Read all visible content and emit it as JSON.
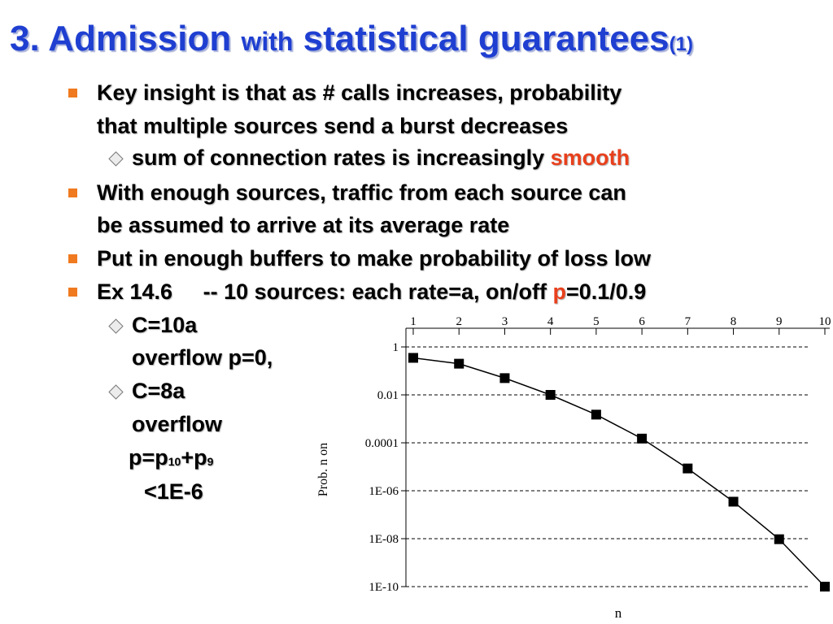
{
  "slide": {
    "title_part1": "3. Admission ",
    "title_part2": "with",
    "title_part3": " statistical guarantees",
    "title_part4": "(1)",
    "bullet1_line1": "Key insight is that as # calls increases, probability",
    "bullet1_line2": "that multiple sources send a burst decreases",
    "sub1_text": "sum of connection rates is increasingly ",
    "sub1_accent": "smooth",
    "bullet2_line1": "With enough sources, traffic from each source can",
    "bullet2_line2": "be assumed to arrive at its average rate",
    "bullet3": "Put in enough buffers to make probability of loss low",
    "bullet4_pre": "Ex 14.6     -- 10 sources: each rate=a, on/off ",
    "bullet4_accent": "p",
    "bullet4_post": "=0.1/0.9",
    "sub2_line1": "C=10a",
    "sub2_line2": "overflow p=0,",
    "sub3_line1": "C=8a",
    "sub3_line2": "overflow",
    "sub3_line3_pre": "p=p",
    "sub3_line3_sub1": "10",
    "sub3_line3_mid": "+p",
    "sub3_line3_sub2": "9",
    "sub3_line4": "<1E-6",
    "colors": {
      "title": "#1f3fd1",
      "bullet": "#f07a1f",
      "accent": "#e8401c",
      "text": "#000000"
    }
  },
  "chart_data": {
    "type": "line",
    "xlabel": "n",
    "ylabel": "Prob. n on",
    "y_scale": "log",
    "x_tick_position": "top",
    "x_ticks": [
      "1",
      "2",
      "3",
      "4",
      "5",
      "6",
      "7",
      "8",
      "9",
      "10"
    ],
    "y_ticks": [
      {
        "value": 1,
        "label": "1"
      },
      {
        "value": 0.01,
        "label": "0.01"
      },
      {
        "value": 0.0001,
        "label": "0.0001"
      },
      {
        "value": 1e-06,
        "label": "1E-06"
      },
      {
        "value": 1e-08,
        "label": "1E-08"
      },
      {
        "value": 1e-10,
        "label": "1E-10"
      }
    ],
    "ylim": [
      1e-10,
      1
    ],
    "xlim": [
      1,
      10
    ],
    "grid": "horizontal-dashed",
    "series": [
      {
        "x": [
          1,
          2,
          3,
          4,
          5,
          6,
          7,
          8,
          9,
          10
        ],
        "y": [
          0.35,
          0.2,
          0.05,
          0.01,
          0.0015,
          0.00015,
          8.5e-06,
          3.5e-07,
          9.5e-09,
          1e-10
        ]
      }
    ]
  }
}
